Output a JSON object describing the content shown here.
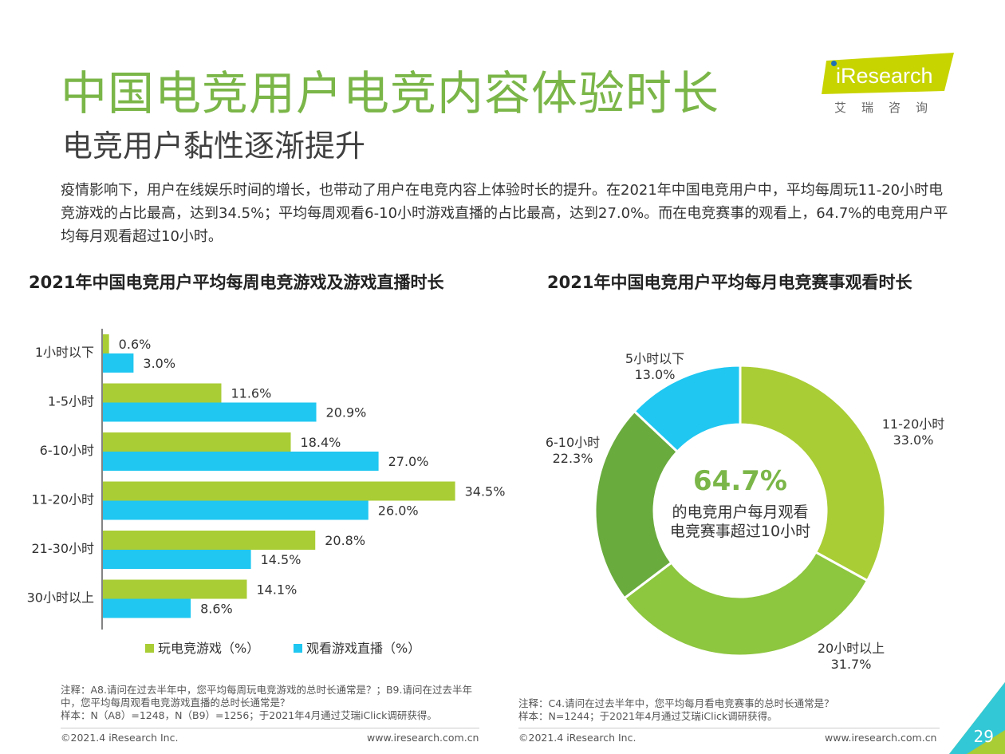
{
  "title": "中国电竞用户电竞内容体验时长",
  "subtitle": "电竞用户黏性逐渐提升",
  "logo": {
    "text": "iResearch",
    "sub": "艾瑞咨询",
    "color": "#c8d400"
  },
  "intro": "疫情影响下，用户在线娱乐时间的增长，也带动了用户在电竞内容上体验时长的提升。在2021年中国电竞用户中，平均每周玩11-20小时电竞游戏的占比最高，达到34.5%；平均每周观看6-10小时游戏直播的占比最高，达到27.0%。而在电竞赛事的观看上，64.7%的电竞用户平均每月观看超过10小时。",
  "chart_data": [
    {
      "type": "bar",
      "orientation": "horizontal",
      "title": "2021年中国电竞用户平均每周电竞游戏及游戏直播时长",
      "categories": [
        "1小时以下",
        "1-5小时",
        "6-10小时",
        "11-20小时",
        "21-30小时",
        "30小时以上"
      ],
      "series": [
        {
          "name": "玩电竞游戏（%）",
          "color": "#a9cd35",
          "values": [
            0.6,
            11.6,
            18.4,
            34.5,
            20.8,
            14.1
          ],
          "labels": [
            "0.6%",
            "11.6%",
            "18.4%",
            "34.5%",
            "20.8%",
            "14.1%"
          ]
        },
        {
          "name": "观看游戏直播（%）",
          "color": "#1fc7f1",
          "values": [
            3.0,
            20.9,
            27.0,
            26.0,
            14.5,
            8.6
          ],
          "labels": [
            "3.0%",
            "20.9%",
            "27.0%",
            "26.0%",
            "14.5%",
            "8.6%"
          ]
        }
      ],
      "legend": "bottom"
    },
    {
      "type": "pie",
      "donut": true,
      "title": "2021年中国电竞用户平均每月电竞赛事观看时长",
      "slices": [
        {
          "name": "11-20小时",
          "value": 33.0,
          "label": "33.0%",
          "color": "#a9cd35"
        },
        {
          "name": "20小时以上",
          "value": 31.7,
          "label": "31.7%",
          "color": "#8dc63f"
        },
        {
          "name": "6-10小时",
          "value": 22.3,
          "label": "22.3%",
          "color": "#6aab3e"
        },
        {
          "name": "5小时以下",
          "value": 13.0,
          "label": "13.0%",
          "color": "#1fc7f1"
        }
      ],
      "center": {
        "value": "64.7%",
        "line1": "的电竞用户每月观看",
        "line2": "电竞赛事超过10小时"
      }
    }
  ],
  "notes": {
    "left": "注释：A8.请问在过去半年中，您平均每周玩电竞游戏的总时长通常是？；B9.请问在过去半年中，您平均每周观看电竞游戏直播的总时长通常是？",
    "left_sample": "样本：N（A8）=1248，N（B9）=1256；于2021年4月通过艾瑞iClick调研获得。",
    "right": "注释：C4.请问在过去半年中，您平均每月看电竞赛事的总时长通常是？",
    "right_sample": "样本：N=1244；于2021年4月通过艾瑞iClick调研获得。"
  },
  "footer": {
    "copyright_left": "©2021.4 iResearch Inc.",
    "url_left": "www.iresearch.com.cn",
    "copyright_right": "©2021.4 iResearch Inc.",
    "url_right": "www.iresearch.com.cn",
    "page": "29"
  }
}
